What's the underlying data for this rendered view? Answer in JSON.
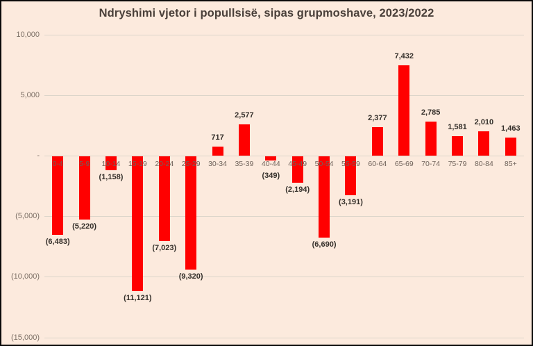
{
  "chart": {
    "title": "Ndryshimi vjetor i popullsisë, sipas grupmoshave, 2023/2022"
  },
  "chart_data": {
    "type": "bar",
    "title": "Ndryshimi vjetor i popullsisë, sipas grupmoshave, 2023/2022",
    "xlabel": "",
    "ylabel": "",
    "categories": [
      "0-4",
      "5-9",
      "10-14",
      "15-19",
      "20-24",
      "25-29",
      "30-34",
      "35-39",
      "40-44",
      "45-49",
      "50-54",
      "55-59",
      "60-64",
      "65-69",
      "70-74",
      "75-79",
      "80-84",
      "85+"
    ],
    "values": [
      -6483,
      -5220,
      -1158,
      -11121,
      -7023,
      -9320,
      717,
      2577,
      -349,
      -2194,
      -6690,
      -3191,
      2377,
      7432,
      2785,
      1581,
      2010,
      1463
    ],
    "data_labels": [
      "(6,483)",
      "(5,220)",
      "(1,158)",
      "(11,121)",
      "(7,023)",
      "(9,320)",
      "717",
      "2,577",
      "(349)",
      "(2,194)",
      "(6,690)",
      "(3,191)",
      "2,377",
      "7,432",
      "2,785",
      "1,581",
      "2,010",
      "1,463"
    ],
    "y_ticks": {
      "values": [
        10000,
        5000,
        0,
        -5000,
        -10000,
        -15000
      ],
      "labels": [
        "10,000",
        "5,000",
        "-",
        "(5,000)",
        "(10,000)",
        "(15,000)"
      ]
    },
    "ylim": [
      -15000,
      10000
    ],
    "grid": true,
    "legend": "none",
    "number_format": "negative-parentheses",
    "colors": {
      "bar": "#ff0000",
      "background": "#fceadd",
      "gridline": "#dcd5ca",
      "title_text": "#4a403a",
      "tick_text": "#7d7066",
      "category_text": "#6f625a",
      "data_label_text": "#35302b",
      "border": "#0a0a0a"
    }
  }
}
